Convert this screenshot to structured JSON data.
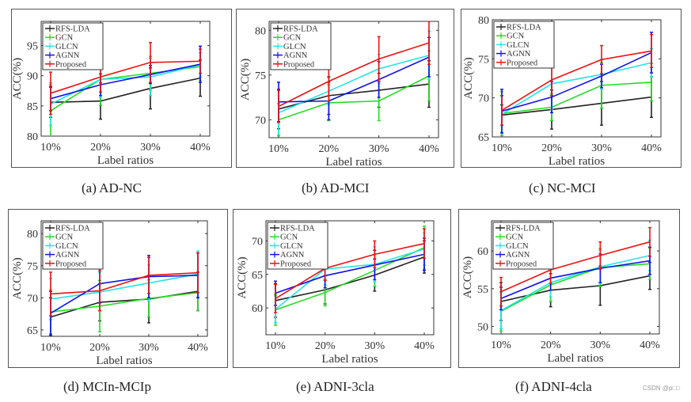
{
  "figure": {
    "watermark": "CSDN @p□□"
  },
  "legend_colors": {
    "RFS-LDA": "#222222",
    "GCN": "#22dd22",
    "GLCN": "#22e5e5",
    "AGNN": "#1111ee",
    "Proposed": "#ee1111"
  },
  "chart_data": [
    {
      "type": "line",
      "id": "a",
      "caption": "(a)  AD-NC",
      "title": "AD-NC",
      "xlabel": "Label ratios",
      "ylabel": "ACC(%)",
      "categories": [
        "10%",
        "20%",
        "30%",
        "40%"
      ],
      "ylim": [
        80,
        99
      ],
      "yticks": [
        80,
        85,
        90,
        95
      ],
      "grid": false,
      "legend": "top-left",
      "series": [
        {
          "name": "RFS-LDA",
          "values": [
            85.6,
            85.8,
            87.9,
            89.6
          ],
          "errors": [
            2.5,
            3.0,
            3.4,
            3.0
          ]
        },
        {
          "name": "GCN",
          "values": [
            84.2,
            89.4,
            90.4,
            91.5
          ],
          "errors": [
            4.3,
            4.3,
            2.8,
            2.3
          ]
        },
        {
          "name": "GLCN",
          "values": [
            85.3,
            89.4,
            89.8,
            91.8
          ],
          "errors": [
            3.5,
            3.0,
            3.1,
            2.0
          ]
        },
        {
          "name": "AGNN",
          "values": [
            86.2,
            88.5,
            90.2,
            91.9
          ],
          "errors": [
            2.0,
            1.8,
            1.5,
            3.0
          ]
        },
        {
          "name": "Proposed",
          "values": [
            87.1,
            89.8,
            92.2,
            92.4
          ],
          "errors": [
            3.5,
            2.5,
            3.3,
            2.0
          ]
        }
      ]
    },
    {
      "type": "line",
      "id": "b",
      "caption": "(b)  AD-MCI",
      "title": "AD-MCI",
      "xlabel": "Label ratios",
      "ylabel": "ACC(%)",
      "categories": [
        "10%",
        "20%",
        "30%",
        "40%"
      ],
      "ylim": [
        68,
        81
      ],
      "yticks": [
        70,
        75,
        80
      ],
      "grid": false,
      "legend": "top-left",
      "series": [
        {
          "name": "RFS-LDA",
          "values": [
            71.2,
            72.7,
            73.3,
            74.0
          ],
          "errors": [
            2.2,
            2.1,
            1.9,
            2.6
          ]
        },
        {
          "name": "GCN",
          "values": [
            70.0,
            71.9,
            72.1,
            74.9
          ],
          "errors": [
            1.8,
            2.0,
            2.2,
            2.8
          ]
        },
        {
          "name": "GLCN",
          "values": [
            70.8,
            73.2,
            75.7,
            77.2
          ],
          "errors": [
            2.5,
            1.5,
            1.6,
            2.7
          ]
        },
        {
          "name": "AGNN",
          "values": [
            72.0,
            72.1,
            74.5,
            77.0
          ],
          "errors": [
            2.2,
            2.1,
            2.0,
            2.2
          ]
        },
        {
          "name": "Proposed",
          "values": [
            71.5,
            74.3,
            76.8,
            78.6
          ],
          "errors": [
            1.8,
            2.2,
            2.5,
            2.4
          ]
        }
      ]
    },
    {
      "type": "line",
      "id": "c",
      "caption": "(c)  NC-MCI",
      "title": "NC-MCI",
      "xlabel": "Label ratios",
      "ylabel": "ACC(%)",
      "categories": [
        "10%",
        "20%",
        "30%",
        "40%"
      ],
      "ylim": [
        65,
        80
      ],
      "yticks": [
        65,
        70,
        75,
        80
      ],
      "grid": false,
      "legend": "top-left",
      "series": [
        {
          "name": "RFS-LDA",
          "values": [
            67.8,
            68.5,
            69.3,
            70.1
          ],
          "errors": [
            1.3,
            2.5,
            2.8,
            2.6
          ]
        },
        {
          "name": "GCN",
          "values": [
            68.0,
            68.8,
            71.6,
            72.0
          ],
          "errors": [
            2.8,
            1.7,
            2.9,
            2.4
          ]
        },
        {
          "name": "GLCN",
          "values": [
            67.9,
            71.8,
            73.0,
            74.5
          ],
          "errors": [
            2.3,
            3.3,
            1.9,
            1.8
          ]
        },
        {
          "name": "AGNN",
          "values": [
            68.3,
            70.1,
            72.8,
            75.8
          ],
          "errors": [
            2.8,
            2.0,
            1.5,
            2.6
          ]
        },
        {
          "name": "Proposed",
          "values": [
            68.4,
            72.3,
            74.9,
            76.0
          ],
          "errors": [
            1.9,
            2.0,
            1.8,
            2.1
          ]
        }
      ]
    },
    {
      "type": "line",
      "id": "d",
      "caption": "(d)  MCIn-MCIp",
      "title": "MCIn-MCIp",
      "xlabel": "Label ratios",
      "ylabel": "ACC(%)",
      "categories": [
        "10%",
        "20%",
        "30%",
        "40%"
      ],
      "ylim": [
        64,
        82
      ],
      "yticks": [
        65,
        70,
        75,
        80
      ],
      "grid": false,
      "legend": "top-left",
      "series": [
        {
          "name": "RFS-LDA",
          "values": [
            67.0,
            69.3,
            69.8,
            71.0
          ],
          "errors": [
            3.0,
            2.9,
            3.7,
            3.0
          ]
        },
        {
          "name": "GCN",
          "values": [
            67.8,
            68.7,
            69.9,
            70.8
          ],
          "errors": [
            3.4,
            4.0,
            2.9,
            2.8
          ]
        },
        {
          "name": "GLCN",
          "values": [
            69.8,
            70.9,
            72.3,
            73.7
          ],
          "errors": [
            3.2,
            3.0,
            2.8,
            3.6
          ]
        },
        {
          "name": "AGNN",
          "values": [
            67.6,
            72.2,
            73.3,
            73.5
          ],
          "errors": [
            3.4,
            3.0,
            3.3,
            3.5
          ]
        },
        {
          "name": "Proposed",
          "values": [
            70.6,
            71.1,
            73.5,
            73.9
          ],
          "errors": [
            3.4,
            3.1,
            2.8,
            3.1
          ]
        }
      ]
    },
    {
      "type": "line",
      "id": "e",
      "caption": "(e)  ADNI-3cla",
      "title": "ADNI-3cla",
      "xlabel": "Label ratios",
      "ylabel": "ACC(%)",
      "categories": [
        "10%",
        "20%",
        "30%",
        "40%"
      ],
      "ylim": [
        56,
        73
      ],
      "yticks": [
        60,
        65,
        70
      ],
      "grid": false,
      "legend": "top-left",
      "series": [
        {
          "name": "RFS-LDA",
          "values": [
            61.1,
            62.7,
            64.9,
            67.6
          ],
          "errors": [
            2.5,
            2.1,
            2.4,
            2.4
          ]
        },
        {
          "name": "GCN",
          "values": [
            59.7,
            62.3,
            65.6,
            69.0
          ],
          "errors": [
            2.3,
            2.0,
            2.4,
            3.2
          ]
        },
        {
          "name": "GLCN",
          "values": [
            59.8,
            65.8,
            66.5,
            68.8
          ],
          "errors": [
            2.0,
            2.4,
            2.6,
            2.4
          ]
        },
        {
          "name": "AGNN",
          "values": [
            62.2,
            64.8,
            66.4,
            68.0
          ],
          "errors": [
            1.8,
            1.8,
            2.2,
            2.4
          ]
        },
        {
          "name": "Proposed",
          "values": [
            61.4,
            65.9,
            68.0,
            69.6
          ],
          "errors": [
            2.1,
            1.8,
            2.0,
            2.2
          ]
        }
      ]
    },
    {
      "type": "line",
      "id": "f",
      "caption": "(f)  ADNI-4cla",
      "title": "ADNI-4cla",
      "xlabel": "Label ratios",
      "ylabel": "ACC(%)",
      "categories": [
        "10%",
        "20%",
        "30%",
        "40%"
      ],
      "ylim": [
        49,
        64
      ],
      "yticks": [
        50,
        55,
        60
      ],
      "grid": false,
      "legend": "top-left",
      "series": [
        {
          "name": "RFS-LDA",
          "values": [
            53.3,
            54.8,
            55.4,
            56.7
          ],
          "errors": [
            2.5,
            2.2,
            2.6,
            1.8
          ]
        },
        {
          "name": "GCN",
          "values": [
            52.0,
            55.5,
            57.8,
            58.3
          ],
          "errors": [
            2.6,
            2.2,
            2.5,
            2.1
          ]
        },
        {
          "name": "GLCN",
          "values": [
            52.1,
            55.8,
            57.9,
            59.4
          ],
          "errors": [
            2.4,
            1.9,
            2.2,
            2.0
          ]
        },
        {
          "name": "AGNN",
          "values": [
            53.7,
            56.4,
            57.7,
            58.7
          ],
          "errors": [
            1.5,
            1.6,
            1.9,
            1.8
          ]
        },
        {
          "name": "Proposed",
          "values": [
            54.6,
            57.5,
            59.4,
            61.2
          ],
          "errors": [
            1.9,
            1.8,
            1.8,
            1.9
          ]
        }
      ]
    }
  ]
}
